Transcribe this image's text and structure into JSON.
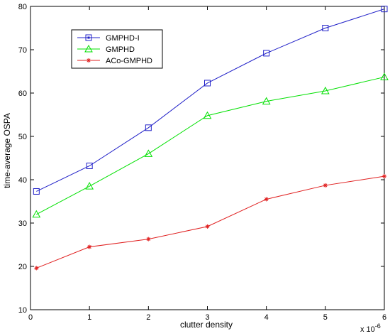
{
  "chart_data": {
    "type": "line",
    "xlabel": "clutter density",
    "ylabel": "time-average OSPA",
    "x_multiplier_base": "x 10",
    "x_multiplier_exp": "-6",
    "x": [
      0.1,
      1,
      2,
      3,
      4,
      5,
      6
    ],
    "xlim": [
      0,
      6
    ],
    "ylim": [
      10,
      80
    ],
    "xticks": [
      0,
      1,
      2,
      3,
      4,
      5,
      6
    ],
    "yticks": [
      10,
      20,
      30,
      40,
      50,
      60,
      70,
      80
    ],
    "grid": false,
    "legend_position": "top-left",
    "series": [
      {
        "name": "GMPHD-I",
        "color": "#2020c8",
        "marker": "square",
        "values": [
          37.3,
          43.2,
          52.0,
          62.3,
          69.2,
          75.0,
          79.4
        ]
      },
      {
        "name": "GMPHD",
        "color": "#00e000",
        "marker": "triangle",
        "values": [
          32.0,
          38.5,
          46.0,
          54.8,
          58.1,
          60.5,
          63.7
        ]
      },
      {
        "name": "ACo-GMPHD",
        "color": "#e02020",
        "marker": "star",
        "values": [
          19.6,
          24.5,
          26.3,
          29.2,
          35.5,
          38.7,
          40.8
        ]
      }
    ]
  }
}
